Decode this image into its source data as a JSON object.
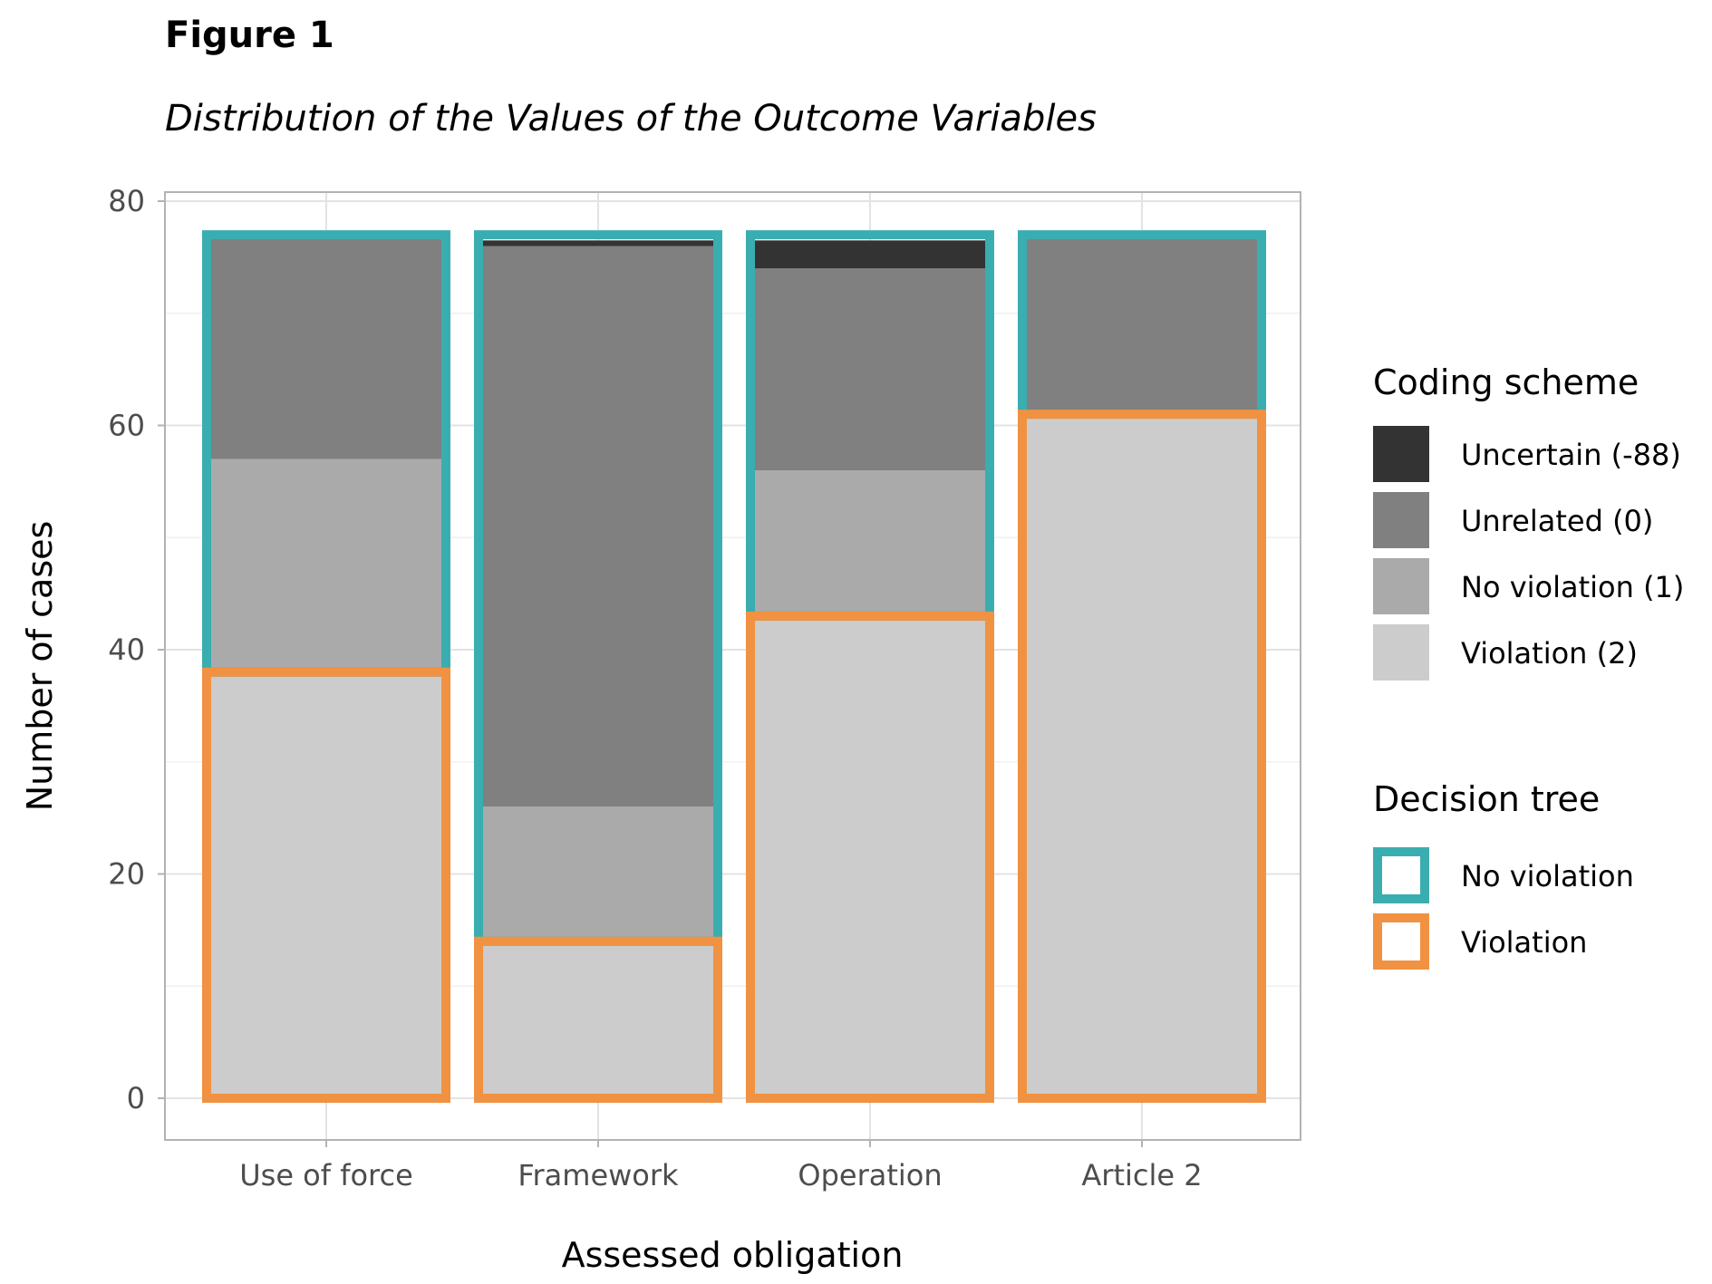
{
  "figure_label": "Figure 1",
  "chart_data": {
    "type": "bar",
    "stacked": true,
    "title": "Distribution of the Values of the Outcome Variables",
    "xlabel": "Assessed obligation",
    "ylabel": "Number of cases",
    "ylim": [
      0,
      80
    ],
    "yticks": [
      0,
      20,
      40,
      60,
      80
    ],
    "grid": true,
    "categories": [
      "Use of force",
      "Framework",
      "Operation",
      "Article 2"
    ],
    "series": [
      {
        "name": "Violation (2)",
        "color": "#cccccc",
        "values": [
          38,
          14,
          43,
          61
        ]
      },
      {
        "name": "No violation (1)",
        "color": "#aaaaaa",
        "values": [
          19,
          12,
          13,
          0
        ]
      },
      {
        "name": "Unrelated (0)",
        "color": "#808080",
        "values": [
          20,
          50,
          18,
          16
        ]
      },
      {
        "name": "Uncertain (-88)",
        "color": "#333333",
        "values": [
          0,
          0.5,
          2.5,
          0
        ]
      }
    ],
    "decision_tree": [
      {
        "name": "Violation",
        "color": "#f09242",
        "values": [
          38,
          14,
          43,
          61
        ]
      },
      {
        "name": "No violation",
        "color": "#3aadb0",
        "values": [
          39,
          63,
          34,
          16
        ]
      }
    ],
    "legends": [
      {
        "title": "Coding scheme",
        "entries": [
          "Uncertain (-88)",
          "Unrelated (0)",
          "No violation (1)",
          "Violation (2)"
        ]
      },
      {
        "title": "Decision tree",
        "entries": [
          "No violation",
          "Violation"
        ]
      }
    ],
    "legend_position": "right"
  }
}
